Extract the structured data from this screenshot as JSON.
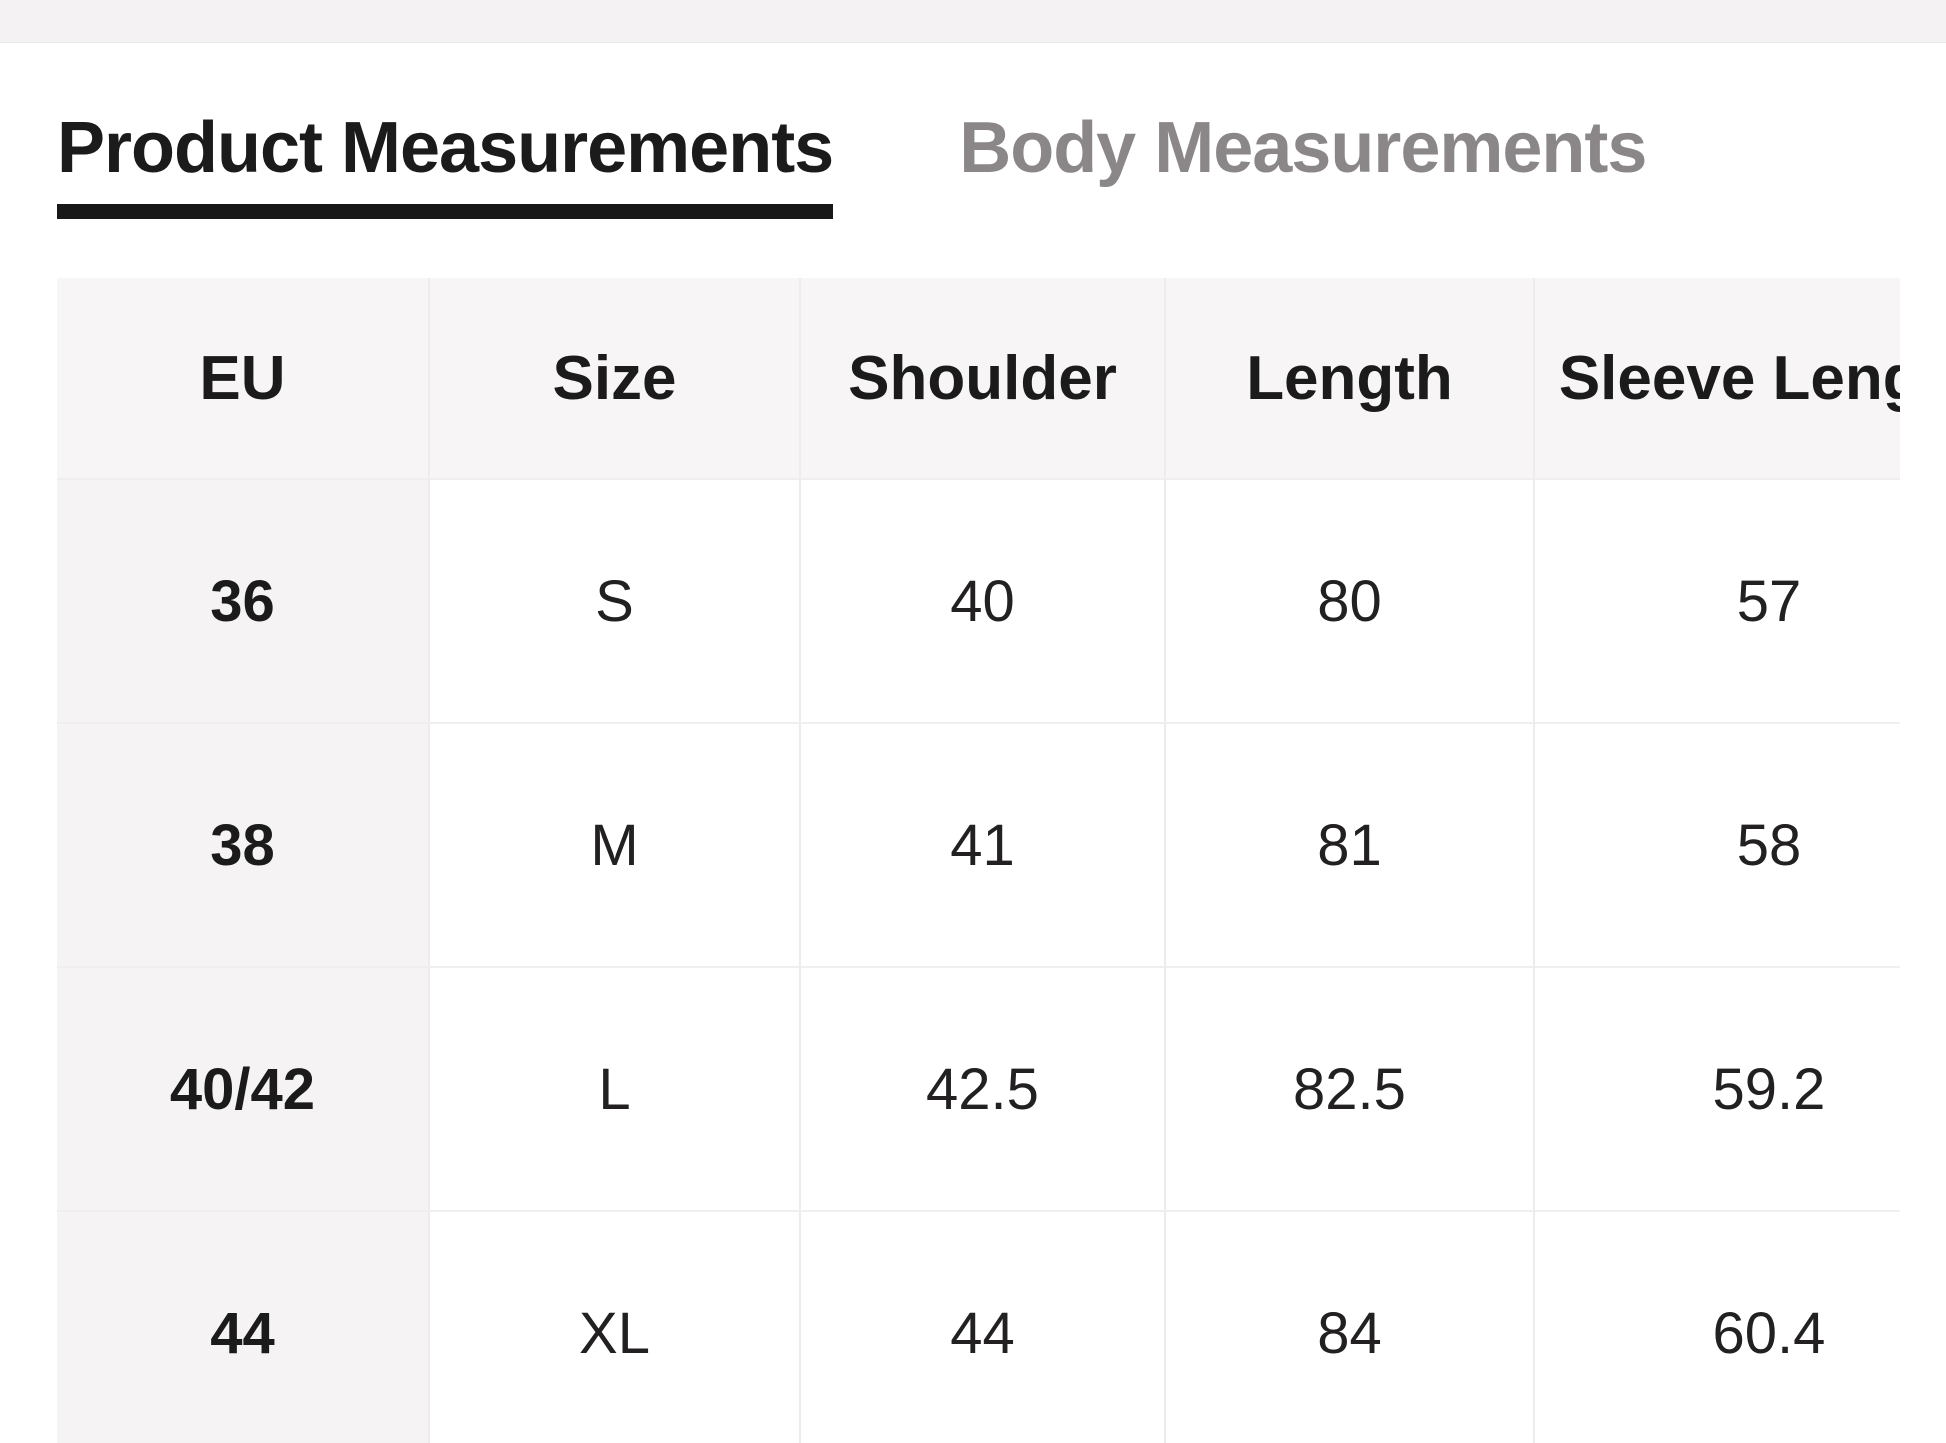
{
  "tabs": {
    "product": {
      "label": "Product Measurements",
      "active": true
    },
    "body": {
      "label": "Body Measurements",
      "active": false
    }
  },
  "table": {
    "headers": [
      "EU",
      "Size",
      "Shoulder",
      "Length",
      "Sleeve Length"
    ],
    "rows": [
      [
        "36",
        "S",
        "40",
        "80",
        "57"
      ],
      [
        "38",
        "M",
        "41",
        "81",
        "58"
      ],
      [
        "40/42",
        "L",
        "42.5",
        "82.5",
        "59.2"
      ],
      [
        "44",
        "XL",
        "44",
        "84",
        "60.4"
      ]
    ]
  },
  "colors": {
    "active_tab_text": "#1c1b1b",
    "active_tab_underline": "#191818",
    "inactive_tab_text": "#8b8789",
    "header_row_bg": "#f7f5f5",
    "eu_column_bg": "#f5f3f3",
    "top_band_bg": "#f4f2f3",
    "grid_line": "#edebeb"
  }
}
